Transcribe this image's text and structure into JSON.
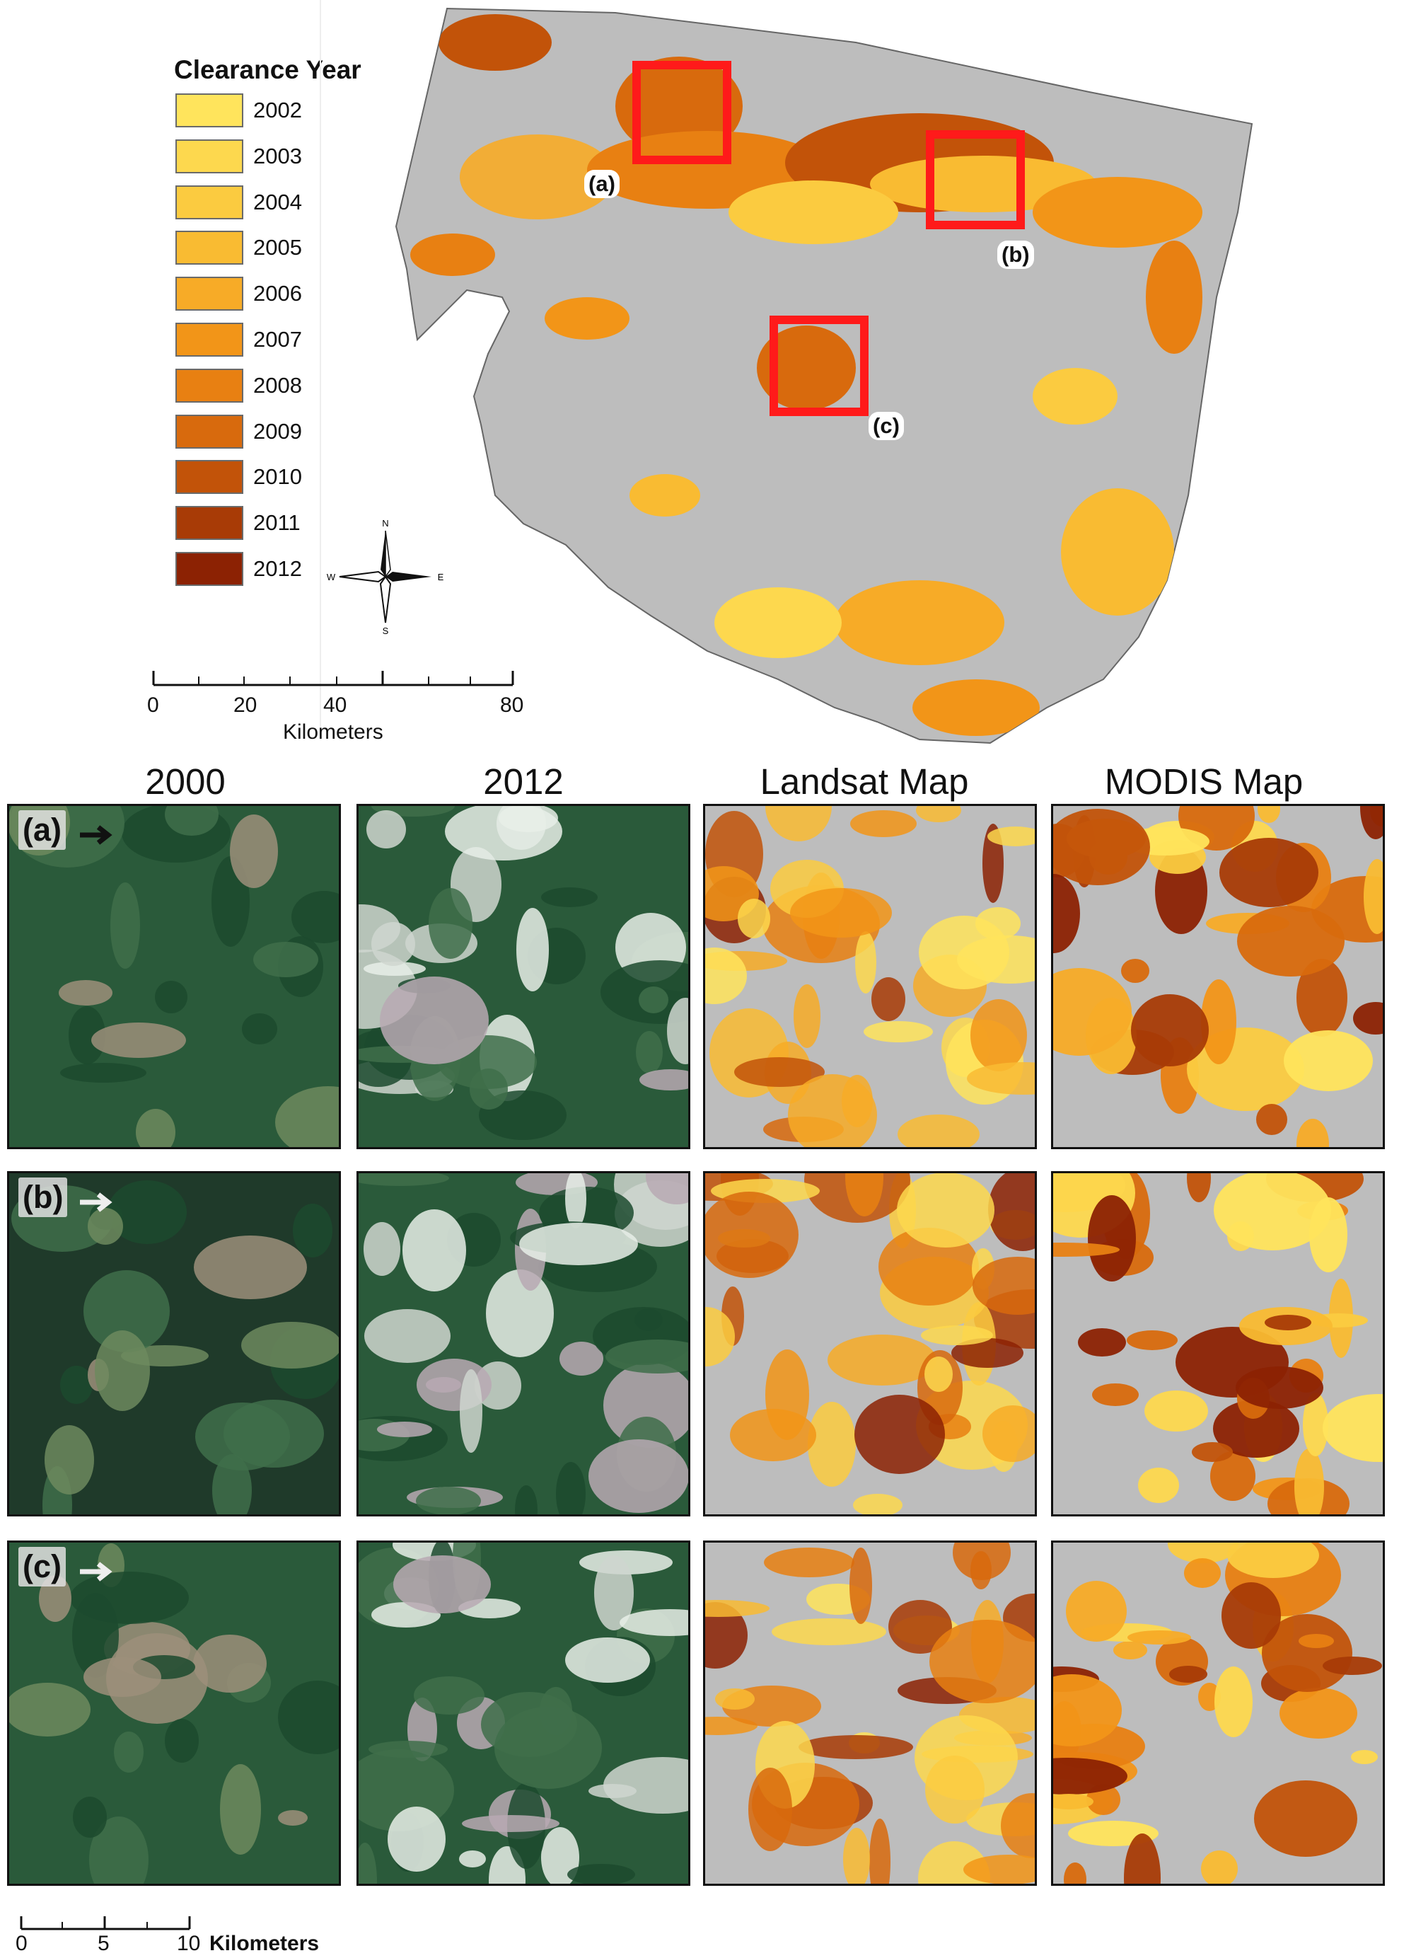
{
  "legend": {
    "title": "Clearance Year",
    "items": [
      {
        "label": "2002",
        "color": "#FFE45C"
      },
      {
        "label": "2003",
        "color": "#FDD84E"
      },
      {
        "label": "2004",
        "color": "#FBCB40"
      },
      {
        "label": "2005",
        "color": "#F9BB32"
      },
      {
        "label": "2006",
        "color": "#F7AB27"
      },
      {
        "label": "2007",
        "color": "#F29518"
      },
      {
        "label": "2008",
        "color": "#E88012"
      },
      {
        "label": "2009",
        "color": "#D86A0D"
      },
      {
        "label": "2010",
        "color": "#C25309"
      },
      {
        "label": "2011",
        "color": "#A83B06"
      },
      {
        "label": "2012",
        "color": "#8C2203"
      }
    ]
  },
  "compass": {
    "n": "N",
    "s": "S",
    "e": "E",
    "w": "W"
  },
  "scale_top": {
    "ticks": [
      "0",
      "20",
      "40",
      "80"
    ],
    "unit": "Kilometers"
  },
  "map_labels": {
    "a": "(a)",
    "b": "(b)",
    "c": "(c)"
  },
  "columns": [
    "2000",
    "2012",
    "Landsat Map",
    "MODIS Map"
  ],
  "rows": [
    "(a)",
    "(b)",
    "(c)"
  ],
  "scale_bottom": {
    "ticks": [
      "0",
      "5",
      "10"
    ],
    "unit": "Kilometers"
  },
  "colors": {
    "highlight_box": "#ff1a1a",
    "terrain": "#bdbdbd",
    "forest": "#2a5a3a"
  }
}
